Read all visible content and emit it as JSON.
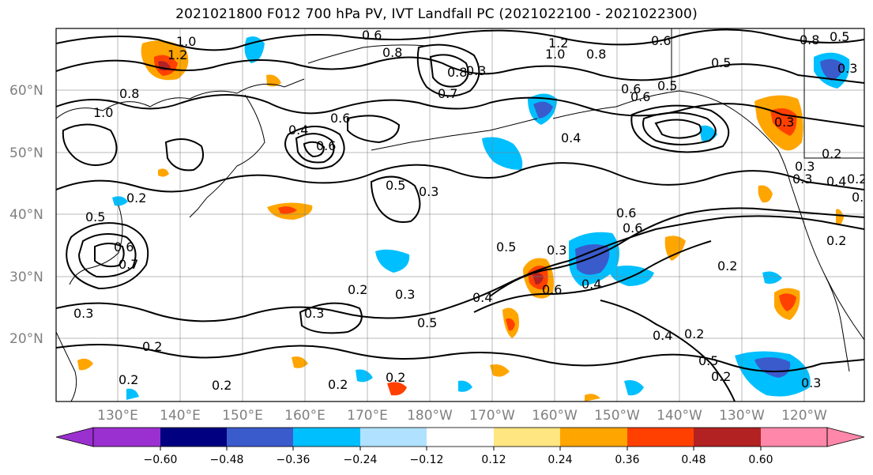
{
  "title": "2021021800 F012 700 hPa PV, IVT Landfall PC (2021022100 - 2021022300)",
  "map": {
    "lat_labels": [
      "60°N",
      "50°N",
      "40°N",
      "30°N",
      "20°N"
    ],
    "lon_labels": [
      "130°E",
      "140°E",
      "150°E",
      "160°E",
      "170°E",
      "180°W",
      "170°W",
      "160°W",
      "150°W",
      "140°W",
      "130°W",
      "120°W"
    ],
    "contour_labels": [
      "1.2",
      "1.0",
      "0.8",
      "0.6",
      "0.5",
      "0.6",
      "0.8",
      "0.3",
      "0.7",
      "0.6",
      "1.2",
      "1.0",
      "0.8",
      "0.6",
      "0.4",
      "0.5",
      "0.6",
      "0.8",
      "0.5",
      "0.3",
      "1.0",
      "0.8",
      "0.4",
      "0.5",
      "0.6",
      "0.3",
      "0.5",
      "0.3",
      "0.7",
      "0.2",
      "0.3",
      "0.4",
      "0.6",
      "0.6",
      "0.3",
      "0.5",
      "0.2",
      "0.3",
      "0.3",
      "0.2",
      "0.4",
      "0.5",
      "0.2",
      "0.2",
      "0.4",
      "0.2",
      "0.5",
      "0.2",
      "0.3",
      "0.2",
      "0.2",
      "0.2",
      "0.3",
      "0.2",
      "0.6",
      "0.4",
      "0.3",
      "0.6",
      "0.2",
      "0.5",
      "0.2"
    ]
  },
  "colorbar": {
    "colors": [
      "#9b30d0",
      "#000080",
      "#3a5bcc",
      "#00bfff",
      "#b0e2ff",
      "#ffffff",
      "#ffffff",
      "#ffe680",
      "#ffa500",
      "#ff4000",
      "#b22222",
      "#ff88aa"
    ],
    "tick_labels": [
      "−0.60",
      "−0.48",
      "−0.36",
      "−0.24",
      "−0.12",
      "0.12",
      "0.24",
      "0.36",
      "0.48",
      "0.60"
    ]
  },
  "colors": {
    "gridline": "#7f7f7f",
    "contour": "#000000",
    "coast": "#000000"
  }
}
